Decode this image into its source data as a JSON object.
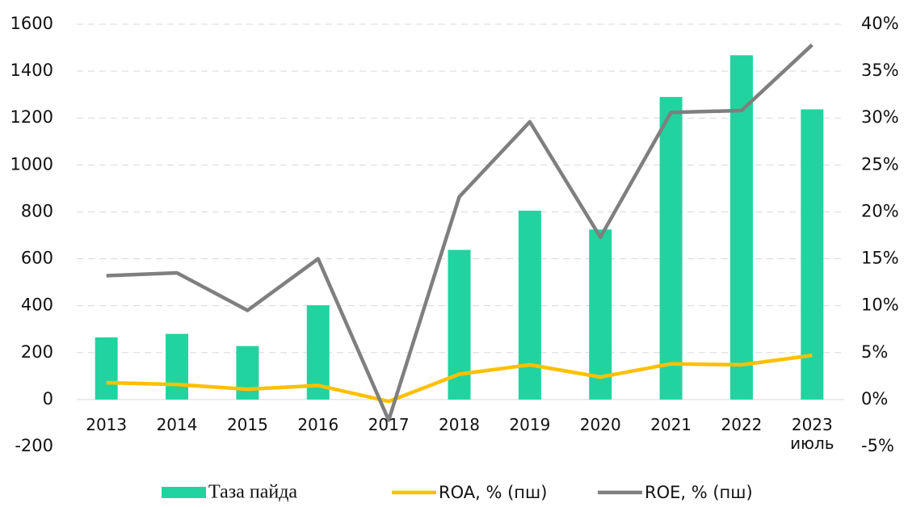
{
  "chart_data": {
    "type": "bar_line",
    "categories": [
      "2013",
      "2014",
      "2015",
      "2016",
      "2017",
      "2018",
      "2019",
      "2020",
      "2021",
      "2022",
      "2023\nиюль"
    ],
    "series": [
      {
        "name": "Таза пайда",
        "type": "bar",
        "color": "#21d49f",
        "values": [
          265,
          280,
          228,
          402,
          0,
          638,
          805,
          725,
          1290,
          1468,
          1237
        ]
      },
      {
        "name": "ROA, % (пш)",
        "type": "line",
        "axis": "y2",
        "color": "#ffc000",
        "values": [
          1.8,
          1.6,
          1.1,
          1.5,
          -0.2,
          2.7,
          3.7,
          2.4,
          3.8,
          3.7,
          4.7
        ]
      },
      {
        "name": "ROE, % (пш)",
        "type": "line",
        "axis": "y2",
        "color": "#7f7f7f",
        "values": [
          13.2,
          13.5,
          9.5,
          15.0,
          -2.2,
          21.6,
          29.6,
          17.3,
          30.6,
          30.8,
          37.8
        ]
      }
    ],
    "ylim": [
      -200,
      1600
    ],
    "yticks": [
      -200,
      0,
      200,
      400,
      600,
      800,
      1000,
      1200,
      1400,
      1600
    ],
    "y2lim": [
      -5,
      40
    ],
    "y2ticks": [
      {
        "value": -5,
        "label": "-5%"
      },
      {
        "value": 0,
        "label": "0%"
      },
      {
        "value": 5,
        "label": "5%"
      },
      {
        "value": 10,
        "label": "10%"
      },
      {
        "value": 15,
        "label": "15%"
      },
      {
        "value": 20,
        "label": "20%"
      },
      {
        "value": 25,
        "label": "25%"
      },
      {
        "value": 30,
        "label": "30%"
      },
      {
        "value": 35,
        "label": "35%"
      },
      {
        "value": 40,
        "label": "40%"
      }
    ],
    "grid": true,
    "legend": "bottom"
  }
}
